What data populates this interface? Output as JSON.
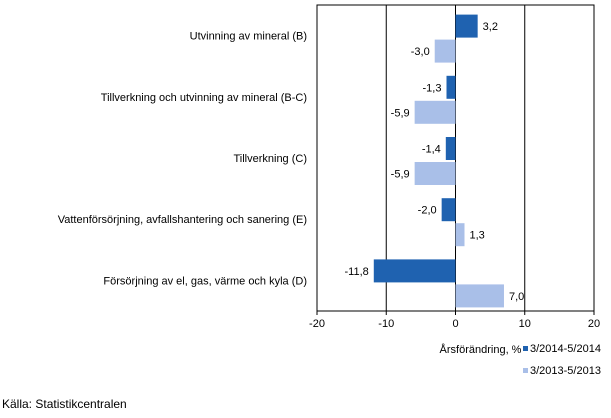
{
  "chart_data": {
    "type": "bar",
    "orientation": "horizontal",
    "categories": [
      "Utvinning av mineral  (B)",
      "Tillverkning och utvinning av mineral (B-C)",
      "Tillverkning (C)",
      "Vattenförsörjning, avfallshantering och sanering (E)",
      "Försörjning av el, gas, värme och kyla (D)"
    ],
    "series": [
      {
        "name": "3/2014-5/2014",
        "color": "#1f62b0",
        "values": [
          3.2,
          -1.3,
          -1.4,
          -2.0,
          -11.8
        ],
        "labels": [
          "3,2",
          "-1,3",
          "-1,4",
          "-2,0",
          "-11,8"
        ]
      },
      {
        "name": "3/2013-5/2013",
        "color": "#a9bfe8",
        "values": [
          -3.0,
          -5.9,
          -5.9,
          1.3,
          7.0
        ],
        "labels": [
          "-3,0",
          "-5,9",
          "-5,9",
          "1,3",
          "7,0"
        ]
      }
    ],
    "xlim": [
      -20,
      20
    ],
    "ticks": [
      -20,
      -10,
      0,
      10,
      20
    ],
    "xlabel": "Årsförändring, %",
    "ylabel": "",
    "grid": "vertical lines at -10 and 10",
    "legend": "bottom-right"
  },
  "source": "Källa: Statistikcentralen"
}
